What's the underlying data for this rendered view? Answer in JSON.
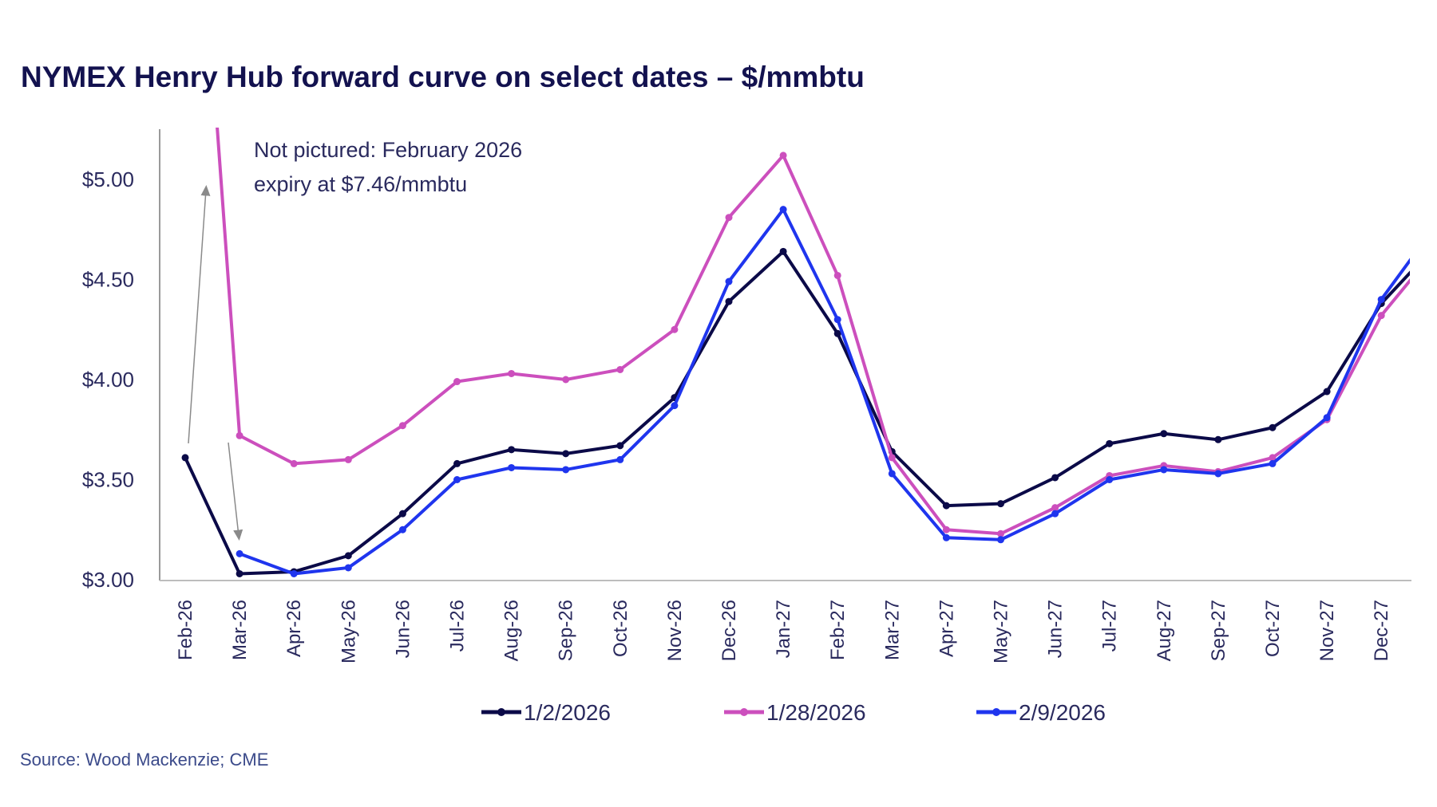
{
  "chart_data": {
    "type": "line",
    "title": "NYMEX Henry Hub forward curve on select dates – $/mmbtu",
    "xlabel": "",
    "ylabel": "",
    "ylim": [
      3.0,
      5.25
    ],
    "yticks": [
      3.0,
      3.5,
      4.0,
      4.5,
      5.0
    ],
    "ytick_labels": [
      "$3.00",
      "$3.50",
      "$4.00",
      "$4.50",
      "$5.00"
    ],
    "grid": false,
    "legend_position": "bottom",
    "categories": [
      "Feb-26",
      "Mar-26",
      "Apr-26",
      "May-26",
      "Jun-26",
      "Jul-26",
      "Aug-26",
      "Sep-26",
      "Oct-26",
      "Nov-26",
      "Dec-26",
      "Jan-27",
      "Feb-27",
      "Mar-27",
      "Apr-27",
      "May-27",
      "Jun-27",
      "Jul-27",
      "Aug-27",
      "Sep-27",
      "Oct-27",
      "Nov-27",
      "Dec-27"
    ],
    "series": [
      {
        "name": "1/2/2026",
        "color": "#0b0a48",
        "values": [
          3.61,
          3.03,
          3.04,
          3.12,
          3.33,
          3.58,
          3.65,
          3.63,
          3.67,
          3.91,
          4.39,
          4.64,
          4.23,
          3.64,
          3.37,
          3.38,
          3.51,
          3.68,
          3.73,
          3.7,
          3.76,
          3.94,
          4.38
        ],
        "next_value_clipped": 4.67
      },
      {
        "name": "1/28/2026",
        "color": "#cc4fbd",
        "values": [
          7.46,
          3.72,
          3.58,
          3.6,
          3.77,
          3.99,
          4.03,
          4.0,
          4.05,
          4.25,
          4.81,
          5.12,
          4.52,
          3.61,
          3.25,
          3.23,
          3.36,
          3.52,
          3.57,
          3.54,
          3.61,
          3.8,
          4.32
        ],
        "next_value_clipped": 4.65
      },
      {
        "name": "2/9/2026",
        "color": "#1f35ee",
        "values": [
          null,
          3.13,
          3.03,
          3.06,
          3.25,
          3.5,
          3.56,
          3.55,
          3.6,
          3.87,
          4.49,
          4.85,
          4.3,
          3.53,
          3.21,
          3.2,
          3.33,
          3.5,
          3.55,
          3.53,
          3.58,
          3.81,
          4.4
        ],
        "next_value_clipped": 4.77
      }
    ],
    "annotation": {
      "line1": "Not pictured: February 2026",
      "line2": "expiry at $7.46/mmbtu"
    },
    "source": "Source: Wood Mackenzie; CME"
  }
}
